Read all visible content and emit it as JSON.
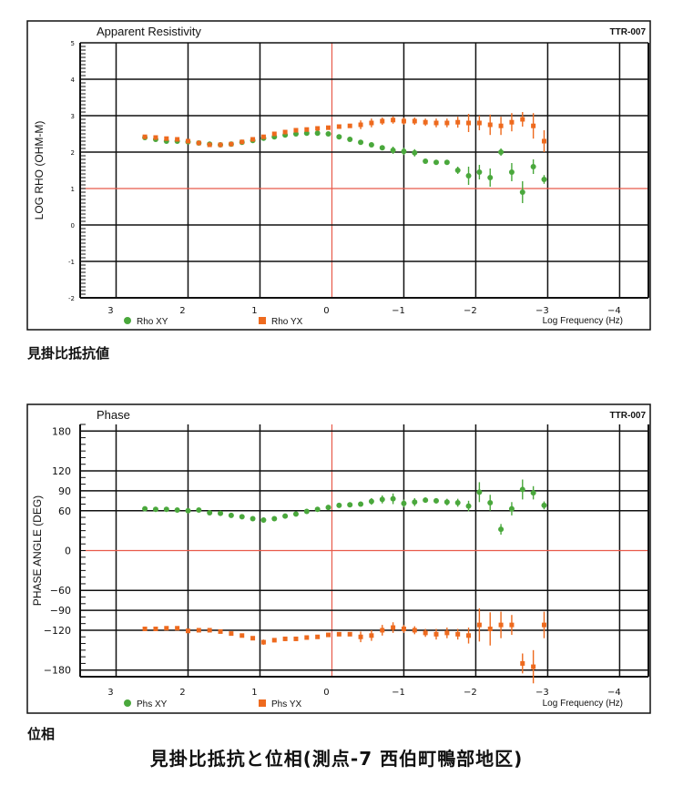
{
  "captions": {
    "rho_jp": "見掛比抵抗値",
    "phase_jp": "位相",
    "main_jp": "見掛比抵抗と位相(測点-7 西伯町鴨部地区)"
  },
  "colors": {
    "green": "#4aa83c",
    "orange": "#ee6a1e",
    "refline": "#e85a4a",
    "grid": "#111111"
  },
  "chart_data": [
    {
      "id": "rho",
      "type": "scatter",
      "title": "Apparent Resistivity",
      "code": "TTR-007",
      "ylabel": "LOG RHO (OHM-M)",
      "xlabel": "Log Frequency (Hz)",
      "xlim": [
        3.5,
        -4.4
      ],
      "ylim": [
        -2,
        5
      ],
      "xticks": [
        3,
        2,
        1,
        0,
        -1,
        -2,
        -3,
        -4
      ],
      "xtick_labels": [
        "3",
        "2",
        "1",
        "0",
        "−1",
        "−2",
        "−3",
        "−4"
      ],
      "yticks": [
        5,
        4,
        3,
        2,
        1,
        0,
        -1,
        -2
      ],
      "ytick_labels": [
        "5",
        "4",
        "3",
        "2",
        "1",
        "0",
        "-1",
        "-2"
      ],
      "ref_line_y": 1,
      "ref_line_x": 0,
      "legend": [
        {
          "label": "Rho XY",
          "marker": "circle",
          "color": "#4aa83c"
        },
        {
          "label": "Rho YX",
          "marker": "square",
          "color": "#ee6a1e"
        }
      ],
      "series": [
        {
          "name": "Rho XY",
          "marker": "circle",
          "color": "#4aa83c",
          "x": [
            2.6,
            2.45,
            2.3,
            2.15,
            2.0,
            1.85,
            1.7,
            1.55,
            1.4,
            1.25,
            1.1,
            0.95,
            0.8,
            0.65,
            0.5,
            0.35,
            0.2,
            0.05,
            -0.1,
            -0.25,
            -0.4,
            -0.55,
            -0.7,
            -0.85,
            -1.0,
            -1.15,
            -1.3,
            -1.45,
            -1.6,
            -1.75,
            -1.9,
            -2.05,
            -2.2,
            -2.35,
            -2.5,
            -2.65,
            -2.8,
            -2.95
          ],
          "y": [
            2.4,
            2.35,
            2.3,
            2.3,
            2.28,
            2.25,
            2.22,
            2.2,
            2.22,
            2.27,
            2.32,
            2.38,
            2.42,
            2.47,
            2.5,
            2.52,
            2.52,
            2.5,
            2.42,
            2.35,
            2.27,
            2.2,
            2.12,
            2.05,
            2.02,
            1.98,
            1.75,
            1.72,
            1.72,
            1.5,
            1.35,
            1.45,
            1.3,
            2.0,
            1.45,
            0.9,
            1.6,
            1.25
          ],
          "err": [
            0.05,
            0.05,
            0.05,
            0.05,
            0.05,
            0.05,
            0.05,
            0.05,
            0.05,
            0.05,
            0.05,
            0.05,
            0.05,
            0.05,
            0.05,
            0.05,
            0.05,
            0.05,
            0.05,
            0.05,
            0.05,
            0.05,
            0.05,
            0.1,
            0.1,
            0.1,
            0.05,
            0.05,
            0.05,
            0.1,
            0.25,
            0.2,
            0.25,
            0.1,
            0.25,
            0.3,
            0.2,
            0.12
          ]
        },
        {
          "name": "Rho YX",
          "marker": "square",
          "color": "#ee6a1e",
          "x": [
            2.6,
            2.45,
            2.3,
            2.15,
            2.0,
            1.85,
            1.7,
            1.55,
            1.4,
            1.25,
            1.1,
            0.95,
            0.8,
            0.65,
            0.5,
            0.35,
            0.2,
            0.05,
            -0.1,
            -0.25,
            -0.4,
            -0.55,
            -0.7,
            -0.85,
            -1.0,
            -1.15,
            -1.3,
            -1.45,
            -1.6,
            -1.75,
            -1.9,
            -2.05,
            -2.2,
            -2.35,
            -2.5,
            -2.65,
            -2.8,
            -2.95
          ],
          "y": [
            2.42,
            2.4,
            2.37,
            2.35,
            2.3,
            2.25,
            2.2,
            2.2,
            2.22,
            2.28,
            2.35,
            2.42,
            2.5,
            2.55,
            2.6,
            2.62,
            2.65,
            2.67,
            2.7,
            2.72,
            2.75,
            2.8,
            2.85,
            2.88,
            2.85,
            2.85,
            2.82,
            2.8,
            2.8,
            2.82,
            2.8,
            2.8,
            2.75,
            2.72,
            2.82,
            2.9,
            2.72,
            2.3
          ],
          "err": [
            0.05,
            0.05,
            0.05,
            0.05,
            0.05,
            0.05,
            0.05,
            0.05,
            0.05,
            0.05,
            0.05,
            0.05,
            0.05,
            0.05,
            0.05,
            0.05,
            0.05,
            0.05,
            0.05,
            0.05,
            0.12,
            0.12,
            0.1,
            0.1,
            0.1,
            0.1,
            0.1,
            0.12,
            0.12,
            0.15,
            0.25,
            0.2,
            0.28,
            0.25,
            0.25,
            0.2,
            0.35,
            0.3
          ]
        }
      ]
    },
    {
      "id": "phase",
      "type": "scatter",
      "title": "Phase",
      "code": "TTR-007",
      "ylabel": "PHASE ANGLE (DEG)",
      "xlabel": "Log Frequency (Hz)",
      "xlim": [
        3.5,
        -4.4
      ],
      "ylim": [
        -190,
        190
      ],
      "xticks": [
        3,
        2,
        1,
        0,
        -1,
        -2,
        -3,
        -4
      ],
      "xtick_labels": [
        "3",
        "2",
        "1",
        "0",
        "−1",
        "−2",
        "−3",
        "−4"
      ],
      "yticks": [
        180,
        120,
        90,
        60,
        0,
        -60,
        -90,
        -120,
        -180
      ],
      "ytick_labels": [
        "180",
        "120",
        "90",
        "60",
        "0",
        "−60",
        "−90",
        "−120",
        "−180"
      ],
      "ref_line_y": 0,
      "ref_line_x": 0,
      "legend": [
        {
          "label": "Phs XY",
          "marker": "circle",
          "color": "#4aa83c"
        },
        {
          "label": "Phs YX",
          "marker": "square",
          "color": "#ee6a1e"
        }
      ],
      "series": [
        {
          "name": "Phs XY",
          "marker": "circle",
          "color": "#4aa83c",
          "x": [
            2.6,
            2.45,
            2.3,
            2.15,
            2.0,
            1.85,
            1.7,
            1.55,
            1.4,
            1.25,
            1.1,
            0.95,
            0.8,
            0.65,
            0.5,
            0.35,
            0.2,
            0.05,
            -0.1,
            -0.25,
            -0.4,
            -0.55,
            -0.7,
            -0.85,
            -1.0,
            -1.15,
            -1.3,
            -1.45,
            -1.6,
            -1.75,
            -1.9,
            -2.05,
            -2.2,
            -2.35,
            -2.5,
            -2.65,
            -2.8,
            -2.95
          ],
          "y": [
            63,
            62,
            62,
            61,
            60,
            61,
            57,
            56,
            53,
            51,
            48,
            46,
            48,
            52,
            55,
            59,
            62,
            65,
            68,
            69,
            70,
            74,
            77,
            78,
            71,
            73,
            76,
            75,
            73,
            72,
            67,
            88,
            72,
            32,
            63,
            92,
            87,
            68
          ],
          "err": [
            3,
            3,
            3,
            3,
            3,
            3,
            3,
            3,
            3,
            3,
            3,
            4,
            3,
            3,
            3,
            3,
            3,
            3,
            3,
            3,
            3,
            5,
            6,
            8,
            6,
            6,
            4,
            4,
            5,
            6,
            8,
            15,
            12,
            8,
            10,
            15,
            10,
            6
          ]
        },
        {
          "name": "Phs YX",
          "marker": "square",
          "color": "#ee6a1e",
          "x": [
            2.6,
            2.45,
            2.3,
            2.15,
            2.0,
            1.85,
            1.7,
            1.55,
            1.4,
            1.25,
            1.1,
            0.95,
            0.8,
            0.65,
            0.5,
            0.35,
            0.2,
            0.05,
            -0.1,
            -0.25,
            -0.4,
            -0.55,
            -0.7,
            -0.85,
            -1.0,
            -1.15,
            -1.3,
            -1.45,
            -1.6,
            -1.75,
            -1.9,
            -2.05,
            -2.2,
            -2.35,
            -2.5,
            -2.65,
            -2.8,
            -2.95
          ],
          "y": [
            -118,
            -118,
            -117,
            -117,
            -121,
            -120,
            -120,
            -122,
            -125,
            -128,
            -132,
            -138,
            -135,
            -133,
            -133,
            -131,
            -130,
            -127,
            -126,
            -126,
            -130,
            -128,
            -120,
            -116,
            -118,
            -120,
            -124,
            -126,
            -124,
            -126,
            -128,
            -112,
            -118,
            -112,
            -112,
            -170,
            -175,
            -112
          ],
          "err": [
            3,
            3,
            3,
            3,
            3,
            3,
            3,
            3,
            3,
            3,
            3,
            4,
            3,
            3,
            3,
            3,
            3,
            3,
            3,
            3,
            8,
            8,
            8,
            8,
            6,
            6,
            6,
            8,
            8,
            8,
            12,
            25,
            25,
            20,
            15,
            15,
            25,
            20
          ]
        }
      ]
    }
  ]
}
